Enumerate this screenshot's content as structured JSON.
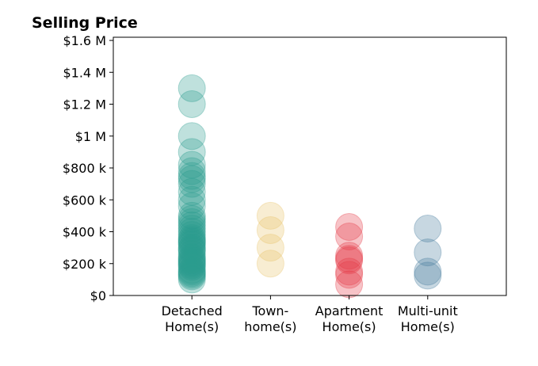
{
  "chart_data": {
    "type": "scatter",
    "title": "Selling Price",
    "xlabel": "",
    "ylabel": "",
    "categories": [
      [
        "Detached",
        "Home(s)"
      ],
      [
        "Town-",
        "home(s)"
      ],
      [
        "Apartment",
        "Home(s)"
      ],
      [
        "Multi-unit",
        "Home(s)"
      ]
    ],
    "y_ticks": [
      {
        "value": 0,
        "label": "$0"
      },
      {
        "value": 200000,
        "label": "$200 k"
      },
      {
        "value": 400000,
        "label": "$400 k"
      },
      {
        "value": 600000,
        "label": "$600 k"
      },
      {
        "value": 800000,
        "label": "$800 k"
      },
      {
        "value": 1000000,
        "label": "$1 M"
      },
      {
        "value": 1200000,
        "label": "$1.2 M"
      },
      {
        "value": 1400000,
        "label": "$1.4 M"
      },
      {
        "value": 1600000,
        "label": "$1.6 M"
      }
    ],
    "ylim": [
      0,
      1620000
    ],
    "xlim": [
      -1,
      4
    ],
    "grid": false,
    "series": [
      {
        "category": "Detached Home(s)",
        "color": "#2a9d8f",
        "values": [
          1300000,
          1200000,
          1000000,
          900000,
          820000,
          780000,
          750000,
          730000,
          700000,
          650000,
          600000,
          560000,
          500000,
          480000,
          460000,
          440000,
          420000,
          400000,
          380000,
          360000,
          350000,
          340000,
          330000,
          320000,
          300000,
          290000,
          280000,
          260000,
          240000,
          230000,
          220000,
          210000,
          200000,
          190000,
          180000,
          160000,
          150000,
          140000,
          130000,
          120000,
          100000
        ]
      },
      {
        "category": "Town-home(s)",
        "color": "#e9c46a",
        "values": [
          500000,
          410000,
          300000,
          200000
        ]
      },
      {
        "category": "Apartment Home(s)",
        "color": "#e63946",
        "values": [
          430000,
          370000,
          250000,
          230000,
          220000,
          150000,
          130000,
          70000
        ]
      },
      {
        "category": "Multi-unit Home(s)",
        "color": "#457b9d",
        "values": [
          420000,
          270000,
          150000,
          125000
        ]
      }
    ]
  }
}
